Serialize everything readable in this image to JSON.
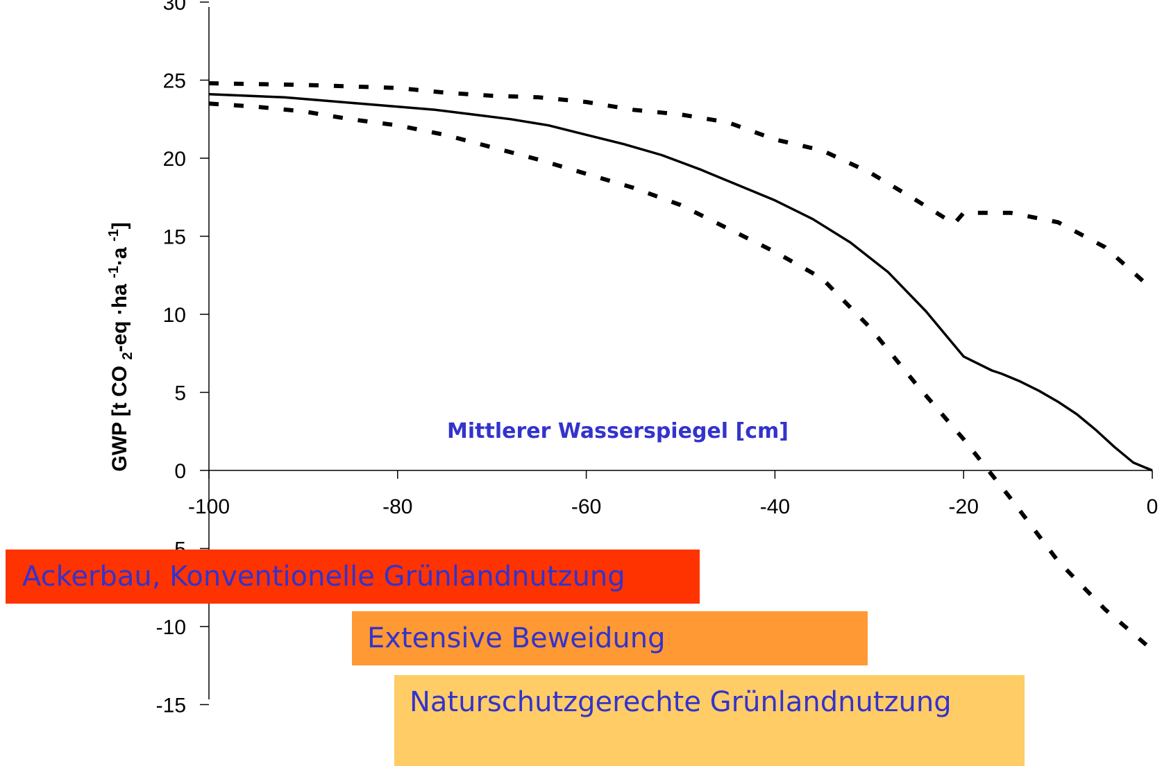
{
  "chart_data": {
    "type": "line",
    "title": "",
    "xlabel": "Mittlerer Wasserspiegel [cm]",
    "ylabel": "GWP [t CO 2-eq ·ha -1·a -1]",
    "xlim": [
      -100,
      0
    ],
    "ylim": [
      -15,
      30
    ],
    "x_ticks": [
      -100,
      -80,
      -60,
      -40,
      -20,
      0
    ],
    "y_ticks": [
      30,
      25,
      20,
      15,
      10,
      5,
      0,
      -5,
      -10,
      -15
    ],
    "grid": false,
    "legend": "none",
    "series": [
      {
        "style": "solid",
        "x": [
          -100,
          -96,
          -92,
          -88,
          -84,
          -80,
          -76,
          -72,
          -68,
          -64,
          -60,
          -56,
          -52,
          -48,
          -44,
          -40,
          -36,
          -32,
          -28,
          -24,
          -20,
          -17,
          -16,
          -14,
          -12,
          -10,
          -8,
          -6,
          -4,
          -2,
          0
        ],
        "y": [
          24.1,
          24.0,
          23.9,
          23.7,
          23.5,
          23.3,
          23.1,
          22.8,
          22.5,
          22.1,
          21.5,
          20.9,
          20.2,
          19.3,
          18.3,
          17.3,
          16.1,
          14.6,
          12.7,
          10.2,
          7.3,
          6.4,
          6.2,
          5.7,
          5.1,
          4.4,
          3.6,
          2.6,
          1.5,
          0.5,
          0.0
        ]
      },
      {
        "style": "dashed-upper",
        "x": [
          -100,
          -90,
          -80,
          -75,
          -70,
          -65,
          -60,
          -55,
          -50,
          -45,
          -40,
          -35,
          -30,
          -25,
          -21,
          -20,
          -15,
          -10,
          -5,
          0
        ],
        "y": [
          24.8,
          24.7,
          24.5,
          24.2,
          24.0,
          23.9,
          23.6,
          23.1,
          22.8,
          22.3,
          21.2,
          20.5,
          19.1,
          17.3,
          15.8,
          16.5,
          16.5,
          15.9,
          14.3,
          11.6
        ]
      },
      {
        "style": "dashed-lower",
        "x": [
          -100,
          -95,
          -90,
          -85,
          -80,
          -75,
          -70,
          -65,
          -60,
          -55,
          -50,
          -45,
          -40,
          -35,
          -30,
          -25,
          -20,
          -15,
          -10,
          -5,
          0
        ],
        "y": [
          23.5,
          23.3,
          23.0,
          22.5,
          22.1,
          21.5,
          20.7,
          19.9,
          19.0,
          18.1,
          17.0,
          15.5,
          14.0,
          12.3,
          9.2,
          5.5,
          2.0,
          -1.8,
          -5.8,
          -8.9,
          -11.5
        ]
      }
    ],
    "annotations": [
      {
        "text": "Ackerbau, Konventionelle Grünlandnutzung",
        "color": "#ff3300"
      },
      {
        "text": "Extensive Beweidung",
        "color": "#ff9933"
      },
      {
        "text": "Naturschutzgerechte Grünlandnutzung",
        "color": "#ffcc66"
      }
    ]
  }
}
